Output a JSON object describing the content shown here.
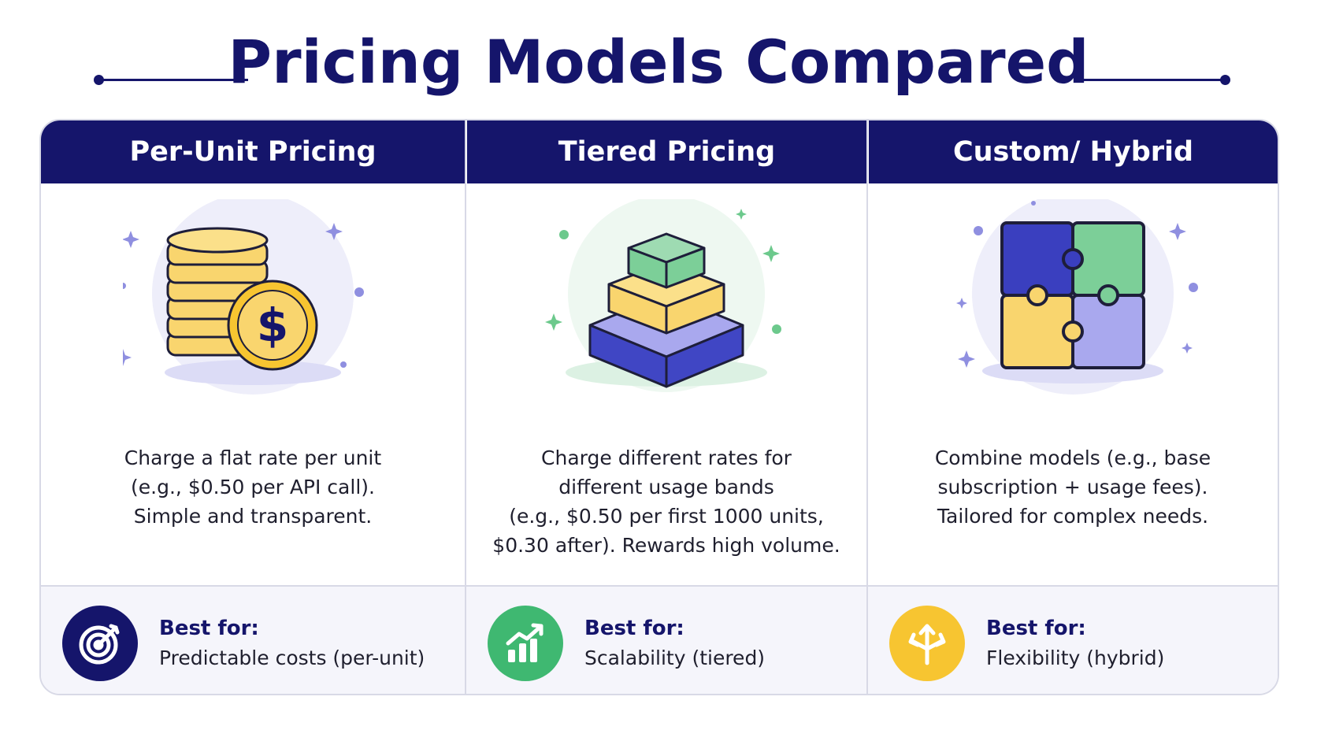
{
  "title": "Pricing Models Compared",
  "columns": [
    {
      "header": "Per-Unit Pricing",
      "illustration": "coin-stack-dollar",
      "description": [
        "Charge a flat rate per unit",
        "(e.g., $0.50 per API call).",
        "Simple and transparent."
      ],
      "best_for_label": "Best for:",
      "best_for_value": "Predictable costs (per-unit)",
      "badge_icon": "target-icon",
      "badge_color": "#15156b"
    },
    {
      "header": "Tiered Pricing",
      "illustration": "tiered-pyramid",
      "description": [
        "Charge different rates for",
        "different usage bands",
        "(e.g., $0.50 per first 1000 units,",
        "$0.30 after). Rewards high volume."
      ],
      "best_for_label": "Best for:",
      "best_for_value": "Scalability (tiered)",
      "badge_icon": "growth-chart-icon",
      "badge_color": "#3fb871"
    },
    {
      "header": "Custom/ Hybrid",
      "illustration": "puzzle-pieces",
      "description": [
        "Combine models (e.g., base",
        "subscription + usage fees).",
        "Tailored for complex needs."
      ],
      "best_for_label": "Best for:",
      "best_for_value": "Flexibility (hybrid)",
      "badge_icon": "split-arrows-icon",
      "badge_color": "#f7c531"
    }
  ],
  "colors": {
    "navy": "#15156b",
    "gold": "#f9d56e",
    "green": "#7ccf98",
    "indigo": "#4046c4",
    "lavender": "#a9a8ee"
  }
}
